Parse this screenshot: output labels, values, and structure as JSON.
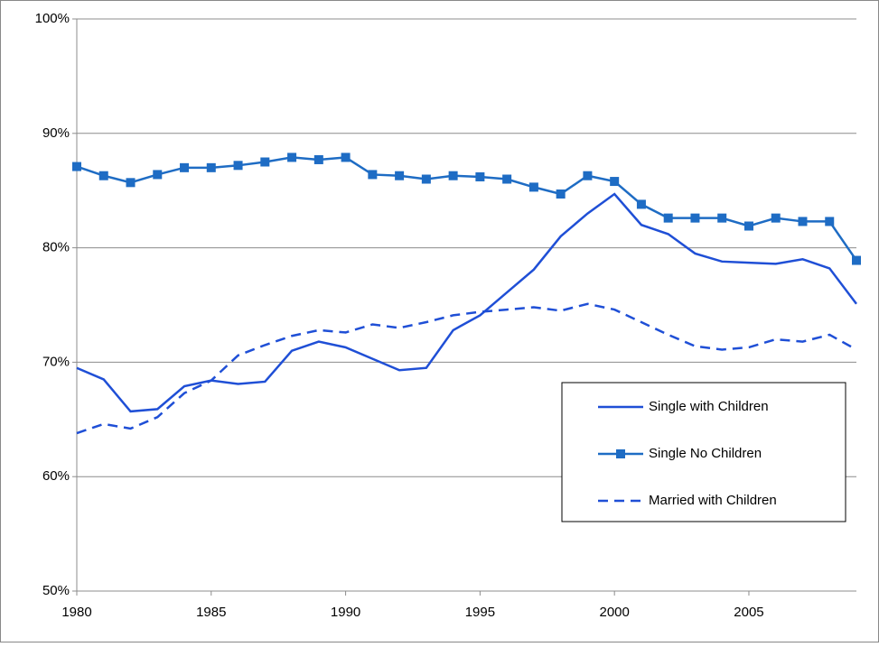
{
  "chart_data": {
    "type": "line",
    "x": [
      1980,
      1981,
      1982,
      1983,
      1984,
      1985,
      1986,
      1987,
      1988,
      1989,
      1990,
      1991,
      1992,
      1993,
      1994,
      1995,
      1996,
      1997,
      1998,
      1999,
      2000,
      2001,
      2002,
      2003,
      2004,
      2005,
      2006,
      2007,
      2008,
      2009
    ],
    "series": [
      {
        "name": "Single with Children",
        "color": "#1f4fd6",
        "style": "solid",
        "values": [
          69.5,
          68.5,
          65.7,
          65.9,
          67.9,
          68.4,
          68.1,
          68.3,
          71.0,
          71.8,
          71.3,
          70.3,
          69.3,
          69.5,
          72.8,
          74.1,
          76.1,
          78.1,
          81.0,
          83.0,
          84.7,
          82.0,
          81.2,
          79.5,
          78.8,
          78.7,
          78.6,
          79.0,
          78.2,
          75.1
        ]
      },
      {
        "name": "Single No Children",
        "color": "#1e6cc4",
        "style": "solid",
        "marker": "square",
        "values": [
          87.1,
          86.3,
          85.7,
          86.4,
          87.0,
          87.0,
          87.2,
          87.5,
          87.9,
          87.7,
          87.9,
          86.4,
          86.3,
          86.0,
          86.3,
          86.2,
          86.0,
          85.3,
          84.7,
          86.3,
          85.8,
          83.8,
          82.6,
          82.6,
          82.6,
          81.9,
          82.6,
          82.3,
          82.3,
          78.9
        ]
      },
      {
        "name": "Married with Children",
        "color": "#1f4fd6",
        "style": "dashed",
        "values": [
          63.8,
          64.6,
          64.2,
          65.2,
          67.3,
          68.4,
          70.6,
          71.5,
          72.3,
          72.8,
          72.6,
          73.3,
          73.0,
          73.5,
          74.1,
          74.4,
          74.6,
          74.8,
          74.5,
          75.1,
          74.6,
          73.5,
          72.4,
          71.4,
          71.1,
          71.3,
          72.0,
          71.8,
          72.4,
          71.1
        ]
      }
    ],
    "xlim": [
      1980,
      2009
    ],
    "xticks": [
      1980,
      1985,
      1990,
      1995,
      2000,
      2005
    ],
    "ylim": [
      50,
      100
    ],
    "yticks": [
      {
        "value": 50,
        "label": "50%"
      },
      {
        "value": 60,
        "label": "60%"
      },
      {
        "value": 70,
        "label": "70%"
      },
      {
        "value": 80,
        "label": "80%"
      },
      {
        "value": 90,
        "label": "90%"
      },
      {
        "value": 100,
        "label": "100%"
      }
    ],
    "grid": true,
    "legend": "lower right"
  }
}
